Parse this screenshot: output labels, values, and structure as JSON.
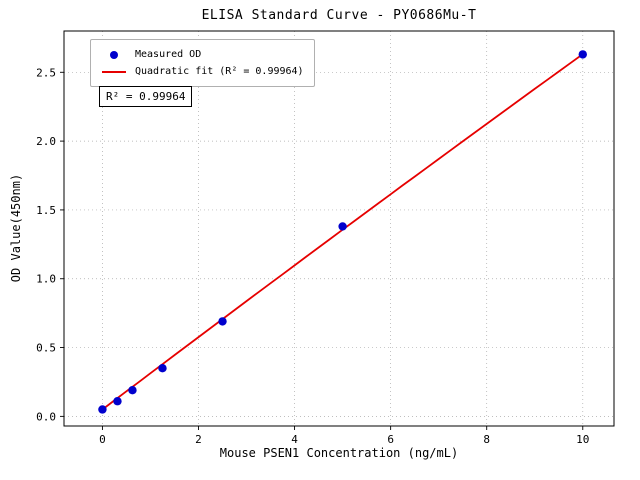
{
  "chart_data": {
    "type": "scatter",
    "title": "ELISA Standard Curve - PY0686Mu-T",
    "xlabel": "Mouse PSEN1 Concentration (ng/mL)",
    "ylabel": "OD Value(450nm)",
    "xlim": [
      -0.8,
      10.65
    ],
    "ylim": [
      -0.07,
      2.8
    ],
    "grid": "dotted",
    "x_ticks": {
      "values": [
        0,
        2,
        4,
        6,
        8,
        10
      ],
      "labels": [
        "0",
        "2",
        "4",
        "6",
        "8",
        "10"
      ]
    },
    "y_ticks": {
      "values": [
        0,
        0.5,
        1.0,
        1.5,
        2.0,
        2.5
      ],
      "labels": [
        "0.0",
        "0.5",
        "1.0",
        "1.5",
        "2.0",
        "2.5"
      ]
    },
    "series": [
      {
        "name": "Measured OD",
        "type": "scatter",
        "color": "#0000cd",
        "x": [
          0,
          0.313,
          0.625,
          1.25,
          2.5,
          5,
          10
        ],
        "y": [
          0.05,
          0.11,
          0.19,
          0.35,
          0.69,
          1.38,
          2.63
        ]
      },
      {
        "name": "Quadratic fit (R² = 0.99964)",
        "type": "line",
        "color": "#e60000",
        "fit_coeffs": [
          0.05,
          0.2642,
          -0.0006
        ],
        "x_range": [
          0,
          10
        ]
      }
    ],
    "legend": {
      "position": "upper left",
      "entries": [
        "Measured OD",
        "Quadratic fit (R² = 0.99964)"
      ]
    },
    "annotation": "R² = 0.99964",
    "r_squared": 0.99964,
    "colors": {
      "grid": "#aaaaaa",
      "axis": "#000000",
      "background": "#ffffff"
    }
  }
}
